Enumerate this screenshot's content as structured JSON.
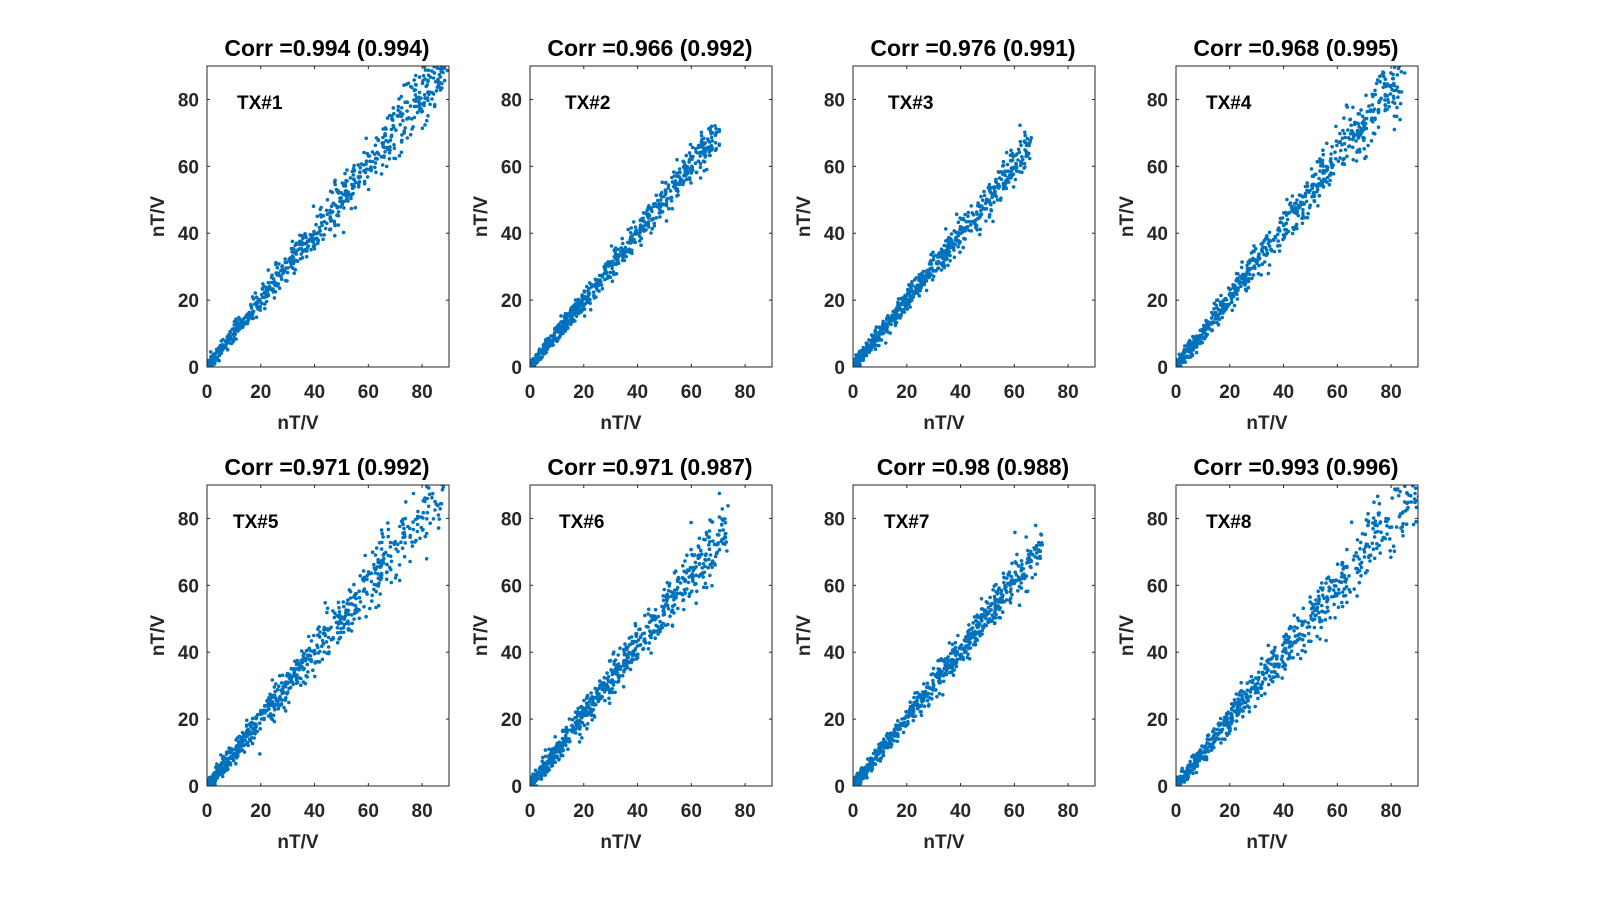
{
  "chart_data": {
    "type": "scatter",
    "layout": "2x4 grid",
    "color": "#0072BD",
    "xlim": [
      0,
      90
    ],
    "ylim": [
      0,
      90
    ],
    "xticks": [
      0,
      20,
      40,
      60,
      80
    ],
    "yticks": [
      0,
      20,
      40,
      60,
      80
    ],
    "panels": [
      {
        "title": "Corr =0.994 (0.994)",
        "label": "TX#1",
        "xlabel": "nT/V",
        "ylabel": "nT/V",
        "x_max": 89,
        "slope": 1.01,
        "spread": 2.2
      },
      {
        "title": "Corr =0.966 (0.992)",
        "label": "TX#2",
        "xlabel": "nT/V",
        "ylabel": "nT/V",
        "x_max": 70,
        "slope": 1.0,
        "spread": 1.8
      },
      {
        "title": "Corr =0.976 (0.991)",
        "label": "TX#3",
        "xlabel": "nT/V",
        "ylabel": "nT/V",
        "x_max": 66,
        "slope": 1.0,
        "spread": 1.8
      },
      {
        "title": "Corr =0.968 (0.995)",
        "label": "TX#4",
        "xlabel": "nT/V",
        "ylabel": "nT/V",
        "x_max": 84,
        "slope": 1.04,
        "spread": 2.4
      },
      {
        "title": "Corr =0.971 (0.992)",
        "label": "TX#5",
        "xlabel": "nT/V",
        "ylabel": "nT/V",
        "x_max": 88,
        "slope": 1.01,
        "spread": 2.6
      },
      {
        "title": "Corr =0.971 (0.987)",
        "label": "TX#6",
        "xlabel": "nT/V",
        "ylabel": "nT/V",
        "x_max": 74,
        "slope": 1.06,
        "spread": 2.6
      },
      {
        "title": "Corr =0.98 (0.988)",
        "label": "TX#7",
        "xlabel": "nT/V",
        "ylabel": "nT/V",
        "x_max": 70,
        "slope": 1.02,
        "spread": 2.0
      },
      {
        "title": "Corr =0.993 (0.996)",
        "label": "TX#8",
        "xlabel": "nT/V",
        "ylabel": "nT/V",
        "x_max": 90,
        "slope": 1.0,
        "spread": 2.6
      }
    ]
  }
}
